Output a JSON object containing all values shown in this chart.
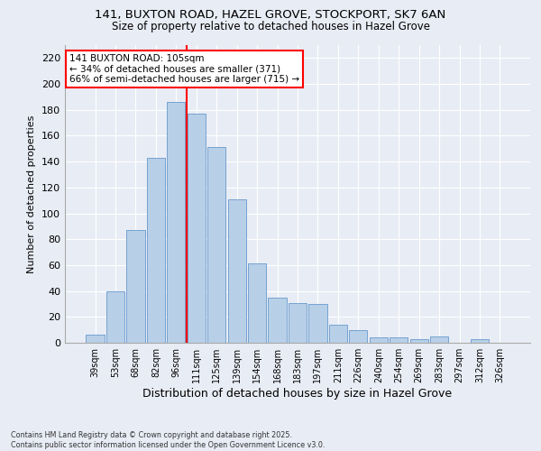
{
  "title_line1": "141, BUXTON ROAD, HAZEL GROVE, STOCKPORT, SK7 6AN",
  "title_line2": "Size of property relative to detached houses in Hazel Grove",
  "xlabel": "Distribution of detached houses by size in Hazel Grove",
  "ylabel": "Number of detached properties",
  "categories": [
    "39sqm",
    "53sqm",
    "68sqm",
    "82sqm",
    "96sqm",
    "111sqm",
    "125sqm",
    "139sqm",
    "154sqm",
    "168sqm",
    "183sqm",
    "197sqm",
    "211sqm",
    "226sqm",
    "240sqm",
    "254sqm",
    "269sqm",
    "283sqm",
    "297sqm",
    "312sqm",
    "326sqm"
  ],
  "values": [
    6,
    40,
    87,
    143,
    186,
    177,
    151,
    111,
    61,
    35,
    31,
    30,
    14,
    10,
    4,
    4,
    3,
    5,
    0,
    3,
    0
  ],
  "bar_color": "#b8cfe8",
  "bar_edge_color": "#6699cc",
  "background_color": "#e8ecf5",
  "grid_color": "#ffffff",
  "vline_x_index": 4.5,
  "vline_color": "red",
  "annotation_title": "141 BUXTON ROAD: 105sqm",
  "annotation_line1": "← 34% of detached houses are smaller (371)",
  "annotation_line2": "66% of semi-detached houses are larger (715) →",
  "annotation_box_color": "white",
  "annotation_box_edge": "red",
  "footnote_line1": "Contains HM Land Registry data © Crown copyright and database right 2025.",
  "footnote_line2": "Contains public sector information licensed under the Open Government Licence v3.0.",
  "ylim": [
    0,
    230
  ],
  "yticks": [
    0,
    20,
    40,
    60,
    80,
    100,
    120,
    140,
    160,
    180,
    200,
    220
  ]
}
